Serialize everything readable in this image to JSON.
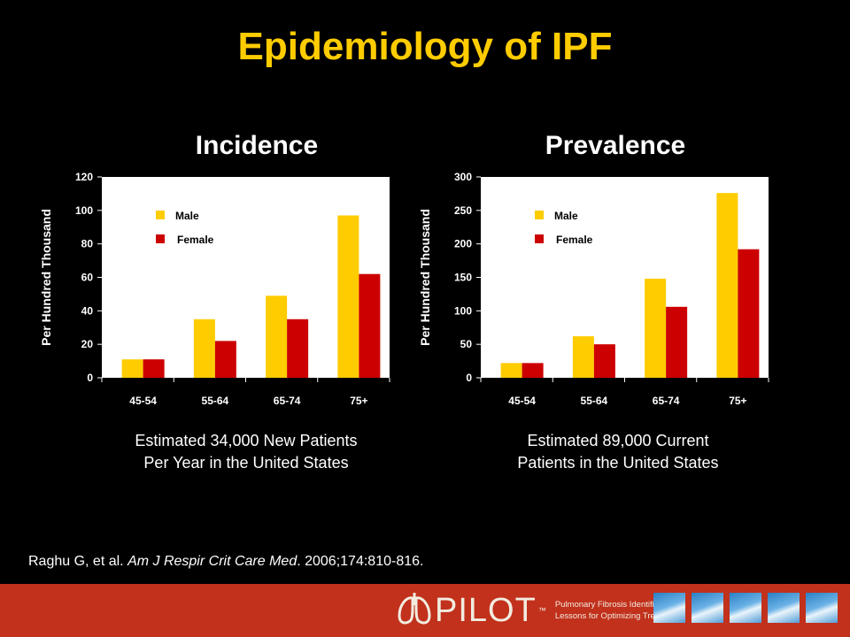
{
  "title": "Epidemiology of IPF",
  "charts": {
    "incidence": {
      "heading": "Incidence",
      "caption_line1": "Estimated 34,000 New Patients",
      "caption_line2": "Per Year in the United States"
    },
    "prevalence": {
      "heading": "Prevalence",
      "caption_line1": "Estimated 89,000 Current",
      "caption_line2": "Patients in the United States"
    }
  },
  "citation": {
    "pre": "Raghu G, et al. ",
    "journal": "Am J Respir Crit Care Med",
    "post": ". 2006;174:810-816."
  },
  "footer": {
    "logo": "PILOT",
    "trademark": "™",
    "tagline_line1": "Pulmonary Fibrosis Identification:",
    "tagline_line2": "Lessons for Optimizing Treatment"
  },
  "colors": {
    "male": "#ffcc00",
    "female": "#cc0000",
    "title": "#ffcc00",
    "footer": "#c1311c"
  },
  "chart_data": [
    {
      "type": "bar",
      "title": "Incidence",
      "categories": [
        "45-54",
        "55-64",
        "65-74",
        "75+"
      ],
      "series": [
        {
          "name": "Male",
          "values": [
            11,
            35,
            49,
            97
          ]
        },
        {
          "name": "Female",
          "values": [
            11,
            22,
            35,
            62
          ]
        }
      ],
      "ylabel": "Per Hundred Thousand",
      "ylim": [
        0,
        120
      ],
      "yticks": [
        0,
        20,
        40,
        60,
        80,
        100,
        120
      ],
      "legend": "top-left inside"
    },
    {
      "type": "bar",
      "title": "Prevalence",
      "categories": [
        "45-54",
        "55-64",
        "65-74",
        "75+"
      ],
      "series": [
        {
          "name": "Male",
          "values": [
            22,
            62,
            148,
            276
          ]
        },
        {
          "name": "Female",
          "values": [
            22,
            50,
            106,
            192
          ]
        }
      ],
      "ylabel": "Per Hundred Thousand",
      "ylim": [
        0,
        300
      ],
      "yticks": [
        0,
        50,
        100,
        150,
        200,
        250,
        300
      ],
      "legend": "top-left inside"
    }
  ]
}
